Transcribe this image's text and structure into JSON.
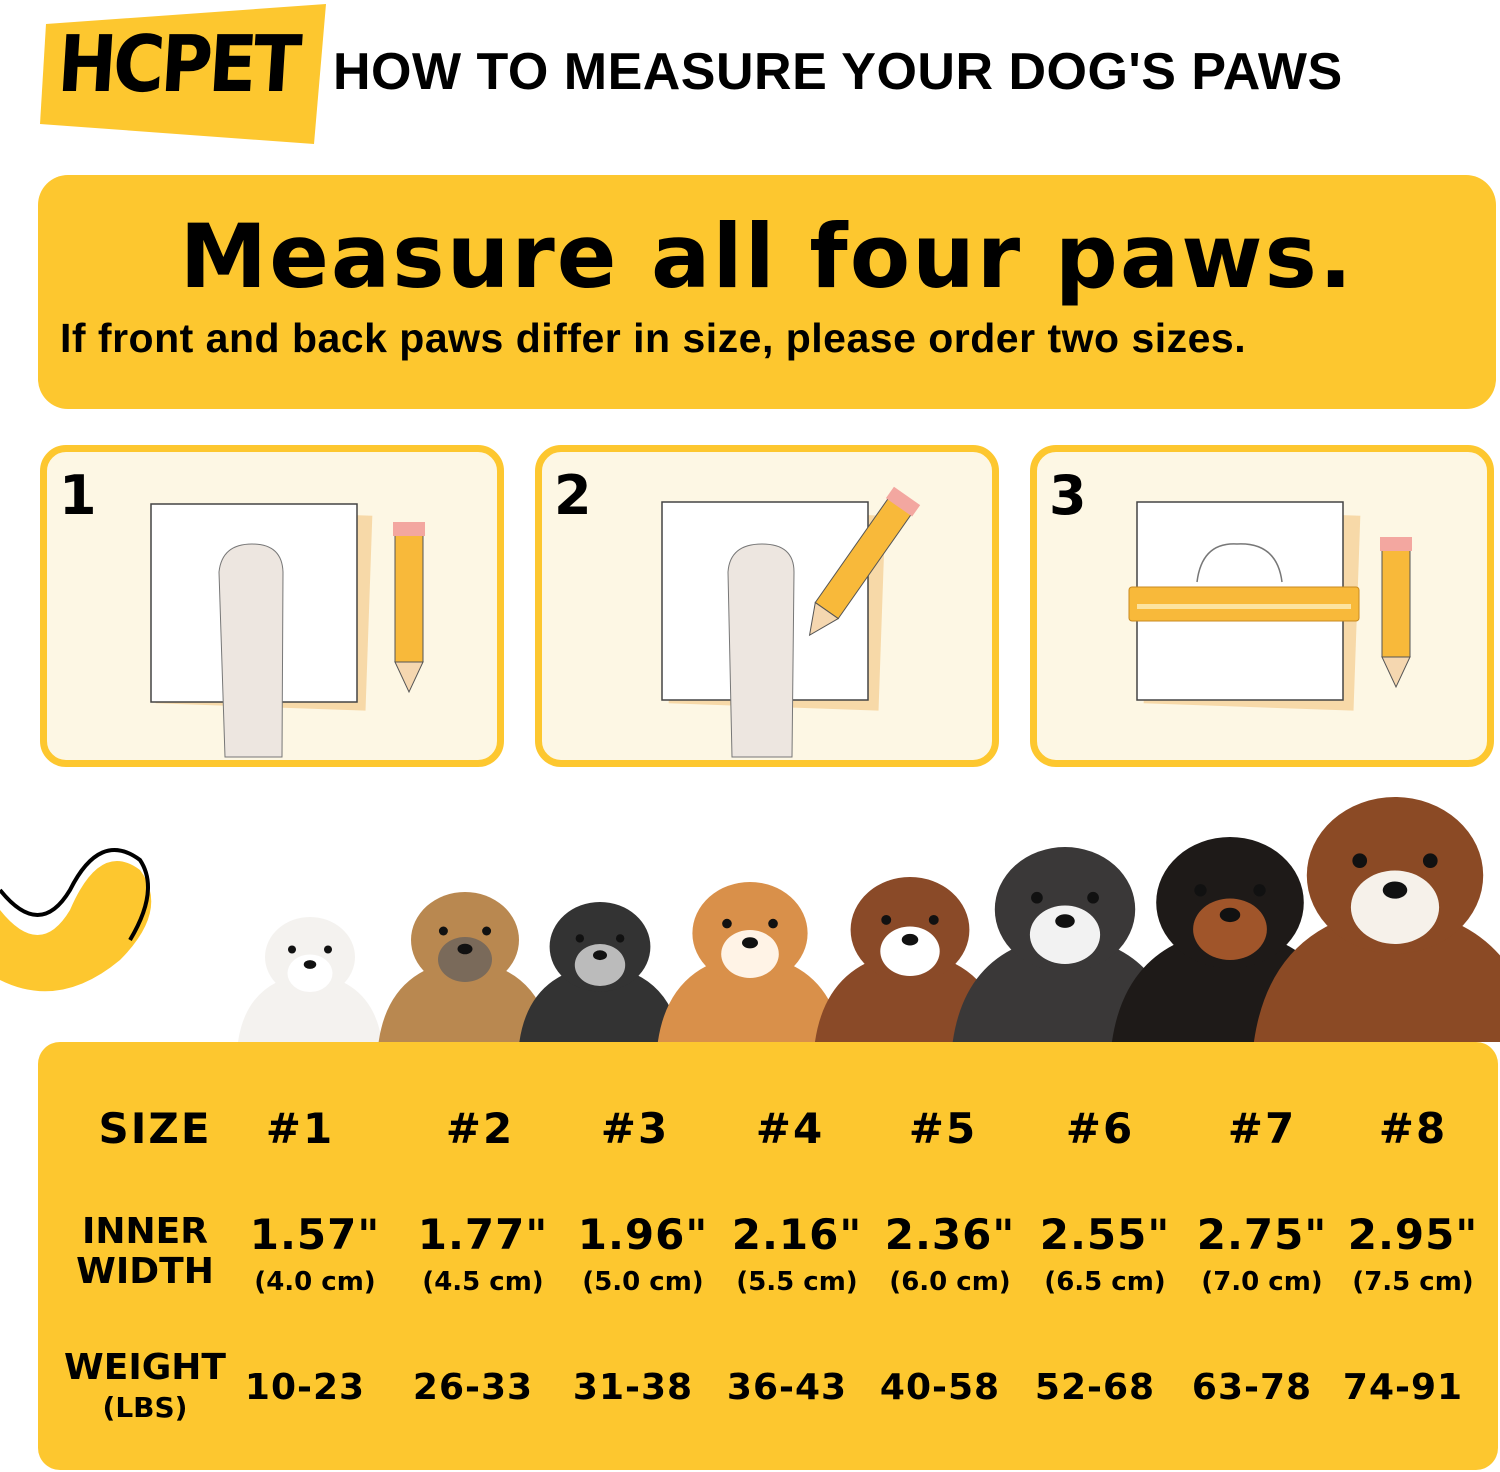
{
  "header": {
    "logo": "HCPET",
    "title": "HOW TO MEASURE YOUR DOG'S PAWS"
  },
  "banner": {
    "heading": "Measure all four paws.",
    "subheading": "If front and back paws differ in size, please order two sizes."
  },
  "steps": [
    {
      "number": "1",
      "illustration": "paw-on-paper-with-pencil"
    },
    {
      "number": "2",
      "illustration": "trace-paw-with-pencil"
    },
    {
      "number": "3",
      "illustration": "measure-outline-with-ruler"
    }
  ],
  "colors": {
    "accent": "#FDC72F",
    "panel": "#FDF7E4",
    "text": "#000000"
  },
  "size_table": {
    "size_label": "SIZE",
    "width_label_1": "INNER",
    "width_label_2": "WIDTH",
    "weight_label": "WEIGHT",
    "weight_unit": "(LBS)",
    "sizes": [
      {
        "size": "#1",
        "inch": "1.57\"",
        "cm": "(4.0 cm)",
        "weight": "10-23"
      },
      {
        "size": "#2",
        "inch": "1.77\"",
        "cm": "(4.5 cm)",
        "weight": "26-33"
      },
      {
        "size": "#3",
        "inch": "1.96\"",
        "cm": "(5.0 cm)",
        "weight": "31-38"
      },
      {
        "size": "#4",
        "inch": "2.16\"",
        "cm": "(5.5 cm)",
        "weight": "36-43"
      },
      {
        "size": "#5",
        "inch": "2.36\"",
        "cm": "(6.0 cm)",
        "weight": "40-58"
      },
      {
        "size": "#6",
        "inch": "2.55\"",
        "cm": "(6.5 cm)",
        "weight": "52-68"
      },
      {
        "size": "#7",
        "inch": "2.75\"",
        "cm": "(7.0 cm)",
        "weight": "63-78"
      },
      {
        "size": "#8",
        "inch": "2.95\"",
        "cm": "(7.5 cm)",
        "weight": "74-91"
      }
    ]
  },
  "dogs": [
    "bichon",
    "yorkshire-terrier",
    "schnauzer",
    "shiba-inu",
    "border-collie",
    "husky",
    "rottweiler",
    "saint-bernard"
  ]
}
